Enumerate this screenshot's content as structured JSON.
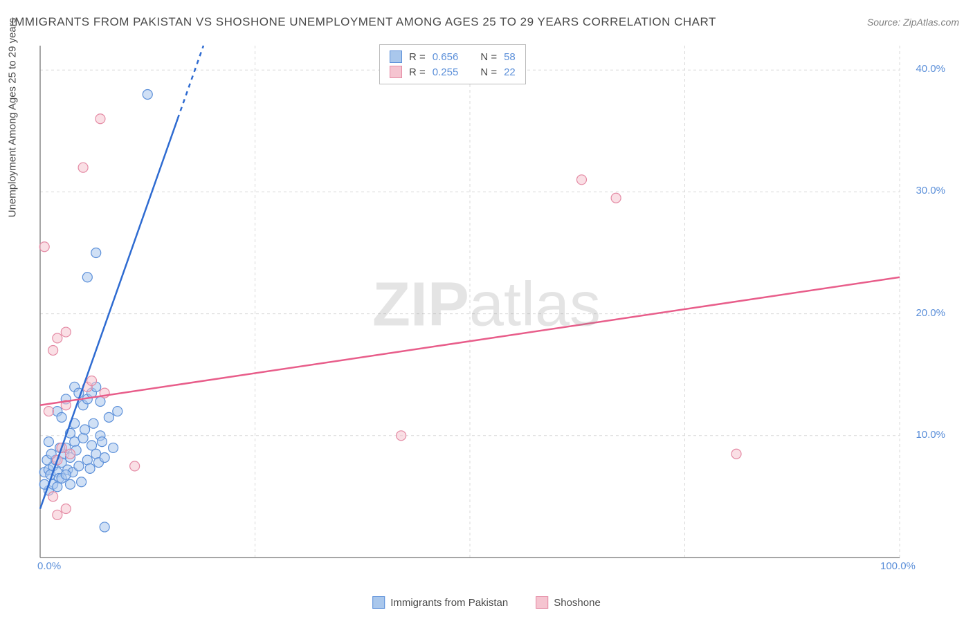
{
  "title": "IMMIGRANTS FROM PAKISTAN VS SHOSHONE UNEMPLOYMENT AMONG AGES 25 TO 29 YEARS CORRELATION CHART",
  "source": "Source: ZipAtlas.com",
  "y_axis_label": "Unemployment Among Ages 25 to 29 years",
  "watermark_a": "ZIP",
  "watermark_b": "atlas",
  "chart": {
    "type": "scatter-with-regression",
    "background_color": "#ffffff",
    "grid_color": "#d8d8d8",
    "axis_color": "#888888",
    "xlim": [
      0,
      100
    ],
    "ylim": [
      0,
      42
    ],
    "x_ticks": [
      0,
      100
    ],
    "x_tick_labels": [
      "0.0%",
      "100.0%"
    ],
    "x_grid": [
      25,
      50,
      75,
      100
    ],
    "y_ticks": [
      10,
      20,
      30,
      40
    ],
    "y_tick_labels": [
      "10.0%",
      "20.0%",
      "30.0%",
      "40.0%"
    ],
    "marker_radius": 7,
    "marker_opacity": 0.55,
    "series": [
      {
        "name": "Immigrants from Pakistan",
        "color_fill": "#a9c7ec",
        "color_stroke": "#5b8fd9",
        "line_color": "#2e6bd1",
        "r_label": "R =",
        "r_value": "0.656",
        "n_label": "N =",
        "n_value": "58",
        "regression": {
          "x1": 0,
          "y1": 4.0,
          "x2": 19,
          "y2": 42,
          "dash_from_x": 16
        },
        "points": [
          [
            0.5,
            7.0
          ],
          [
            1.0,
            7.2
          ],
          [
            1.2,
            6.8
          ],
          [
            1.5,
            7.5
          ],
          [
            1.8,
            8.0
          ],
          [
            2.0,
            7.0
          ],
          [
            2.2,
            6.5
          ],
          [
            2.5,
            7.8
          ],
          [
            2.8,
            8.5
          ],
          [
            3.0,
            9.0
          ],
          [
            3.2,
            7.2
          ],
          [
            3.5,
            8.2
          ],
          [
            3.8,
            7.0
          ],
          [
            4.0,
            9.5
          ],
          [
            4.2,
            8.8
          ],
          [
            4.5,
            7.5
          ],
          [
            4.8,
            6.2
          ],
          [
            5.0,
            9.8
          ],
          [
            5.2,
            10.5
          ],
          [
            5.5,
            8.0
          ],
          [
            5.8,
            7.3
          ],
          [
            6.0,
            9.2
          ],
          [
            6.2,
            11.0
          ],
          [
            6.5,
            8.5
          ],
          [
            6.8,
            7.8
          ],
          [
            7.0,
            10.0
          ],
          [
            7.2,
            9.5
          ],
          [
            7.5,
            8.2
          ],
          [
            8.0,
            11.5
          ],
          [
            8.5,
            9.0
          ],
          [
            9.0,
            12.0
          ],
          [
            1.0,
            5.5
          ],
          [
            1.5,
            6.0
          ],
          [
            2.0,
            5.8
          ],
          [
            2.5,
            6.5
          ],
          [
            3.0,
            6.8
          ],
          [
            0.8,
            8.0
          ],
          [
            1.3,
            8.5
          ],
          [
            2.3,
            9.0
          ],
          [
            0.5,
            6.0
          ],
          [
            1.0,
            9.5
          ],
          [
            3.5,
            10.2
          ],
          [
            4.0,
            11.0
          ],
          [
            5.0,
            12.5
          ],
          [
            5.5,
            13.0
          ],
          [
            6.0,
            13.5
          ],
          [
            6.5,
            14.0
          ],
          [
            7.0,
            12.8
          ],
          [
            2.0,
            12.0
          ],
          [
            3.0,
            13.0
          ],
          [
            4.0,
            14.0
          ],
          [
            2.5,
            11.5
          ],
          [
            5.5,
            23.0
          ],
          [
            6.5,
            25.0
          ],
          [
            12.5,
            38.0
          ],
          [
            3.5,
            6.0
          ],
          [
            7.5,
            2.5
          ],
          [
            4.5,
            13.5
          ]
        ]
      },
      {
        "name": "Shoshone",
        "color_fill": "#f5c4d0",
        "color_stroke": "#e48aa4",
        "line_color": "#e85d8a",
        "r_label": "R =",
        "r_value": "0.255",
        "n_label": "N =",
        "n_value": "22",
        "regression": {
          "x1": 0,
          "y1": 12.5,
          "x2": 100,
          "y2": 23.0,
          "dash_from_x": 100
        },
        "points": [
          [
            0.5,
            25.5
          ],
          [
            2.0,
            3.5
          ],
          [
            3.0,
            4.0
          ],
          [
            1.5,
            5.0
          ],
          [
            2.5,
            9.0
          ],
          [
            3.5,
            8.5
          ],
          [
            1.0,
            12.0
          ],
          [
            2.0,
            18.0
          ],
          [
            3.0,
            18.5
          ],
          [
            1.5,
            17.0
          ],
          [
            5.0,
            32.0
          ],
          [
            7.0,
            36.0
          ],
          [
            5.5,
            14.0
          ],
          [
            11.0,
            7.5
          ],
          [
            7.5,
            13.5
          ],
          [
            42.0,
            10.0
          ],
          [
            63.0,
            31.0
          ],
          [
            67.0,
            29.5
          ],
          [
            81.0,
            8.5
          ],
          [
            2.0,
            8.0
          ],
          [
            3.0,
            12.5
          ],
          [
            6.0,
            14.5
          ]
        ]
      }
    ]
  },
  "bottom_legend": [
    {
      "label": "Immigrants from Pakistan",
      "fill": "#a9c7ec",
      "stroke": "#5b8fd9"
    },
    {
      "label": "Shoshone",
      "fill": "#f5c4d0",
      "stroke": "#e48aa4"
    }
  ]
}
